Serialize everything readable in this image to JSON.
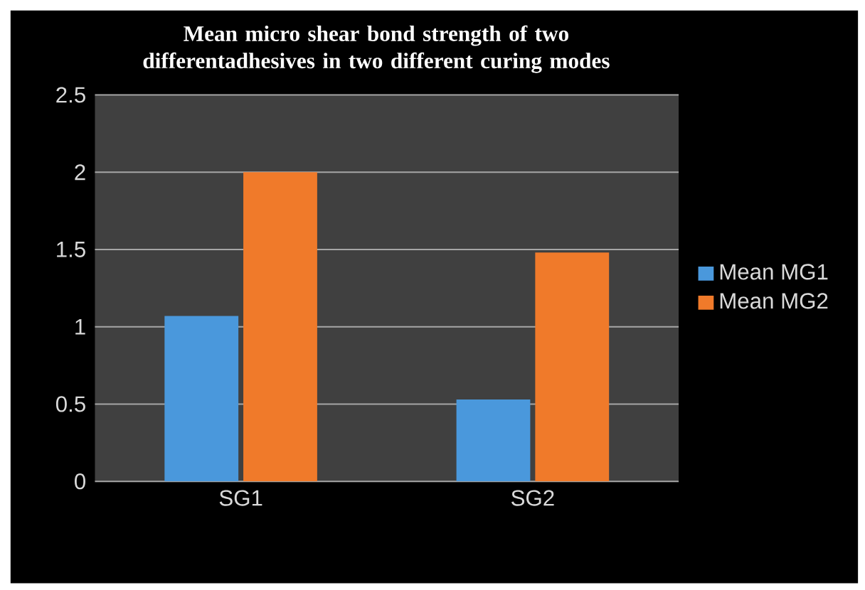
{
  "chart_data": {
    "type": "bar",
    "title": "Mean micro shear bond strength of two differentadhesives in two different curing modes",
    "categories": [
      "SG1",
      "SG2"
    ],
    "series": [
      {
        "name": "Mean MG1",
        "color": "#4a98dc",
        "values": [
          1.07,
          0.53
        ]
      },
      {
        "name": "Mean MG2",
        "color": "#f07a2a",
        "values": [
          2.0,
          1.48
        ]
      }
    ],
    "ylim": [
      0,
      2.5
    ],
    "yticks": [
      0,
      0.5,
      1,
      1.5,
      2,
      2.5
    ],
    "grid": "y",
    "legend": "right"
  }
}
